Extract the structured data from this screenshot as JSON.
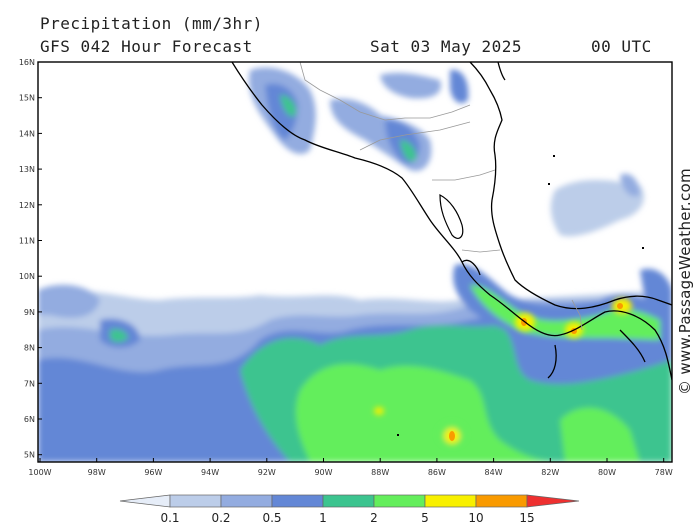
{
  "header": {
    "title": "Precipitation (mm/3hr)",
    "subtitle": "GFS 042 Hour Forecast",
    "date": "Sat 03 May 2025",
    "time": "00 UTC"
  },
  "map": {
    "lat_labels": [
      "16N",
      "15N",
      "14N",
      "13N",
      "12N",
      "11N",
      "10N",
      "9N",
      "8N",
      "7N",
      "6N",
      "5N"
    ],
    "lon_labels": [
      "100W",
      "98W",
      "96W",
      "94W",
      "92W",
      "90W",
      "88W",
      "86W",
      "84W",
      "82W",
      "80W",
      "78W"
    ]
  },
  "legend": {
    "labels": [
      "0.1",
      "0.2",
      "0.5",
      "1",
      "2",
      "5",
      "10",
      "15"
    ],
    "colors": [
      "#e6edf8",
      "#bccde9",
      "#93ace0",
      "#6387d6",
      "#3cc48f",
      "#64ee5c",
      "#f8f000",
      "#f99a00",
      "#ee3030"
    ]
  },
  "watermark": "© www.PassageWeather.com"
}
